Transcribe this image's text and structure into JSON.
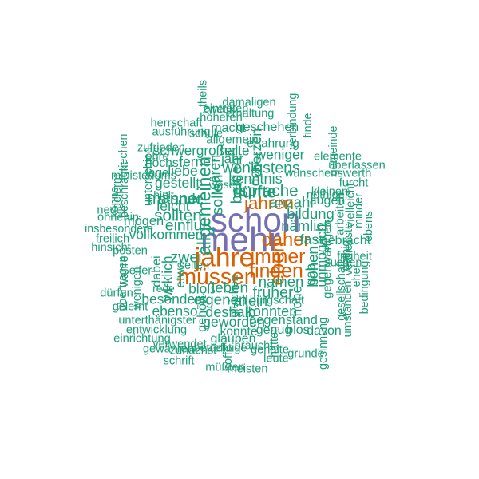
{
  "cloud": {
    "colors": {
      "top": "#7570b3",
      "high": "#d95f02",
      "mid": "#1b9e77"
    },
    "words": [
      {
        "text": "mehr",
        "weight": 1,
        "vertical": false,
        "tier": "top"
      },
      {
        "text": "schon",
        "weight": 0.95,
        "vertical": false,
        "tier": "top"
      },
      {
        "text": "jahre",
        "weight": 0.7,
        "vertical": false,
        "tier": "high"
      },
      {
        "text": "müssen",
        "weight": 0.55,
        "vertical": false,
        "tier": "high"
      },
      {
        "text": "eben",
        "weight": 0.45,
        "vertical": true,
        "tier": "high"
      },
      {
        "text": "immer",
        "weight": 0.45,
        "vertical": false,
        "tier": "high"
      },
      {
        "text": "finden",
        "weight": 0.45,
        "vertical": false,
        "tier": "high"
      },
      {
        "text": "daher",
        "weight": 0.42,
        "vertical": false,
        "tier": "high"
      },
      {
        "text": "jahren",
        "weight": 0.38,
        "vertical": false,
        "tier": "high"
      },
      {
        "text": "allgemeinen",
        "weight": 0.4,
        "vertical": true,
        "tier": "mid"
      },
      {
        "text": "dürfte",
        "weight": 0.35,
        "vertical": false,
        "tier": "mid"
      },
      {
        "text": "sprache",
        "weight": 0.33,
        "vertical": false,
        "tier": "mid"
      },
      {
        "text": "sollten",
        "weight": 0.33,
        "vertical": false,
        "tier": "mid"
      },
      {
        "text": "männer",
        "weight": 0.32,
        "vertical": false,
        "tier": "mid"
      },
      {
        "text": "einfluß",
        "weight": 0.3,
        "vertical": false,
        "tier": "mid"
      },
      {
        "text": "sollen",
        "weight": 0.3,
        "vertical": true,
        "tier": "mid"
      },
      {
        "text": "beiden",
        "weight": 0.3,
        "vertical": true,
        "tier": "mid"
      },
      {
        "text": "wenigstens",
        "weight": 0.3,
        "vertical": false,
        "tier": "mid"
      },
      {
        "text": "zwei",
        "weight": 0.3,
        "vertical": false,
        "tier": "mid"
      },
      {
        "text": "früher",
        "weight": 0.3,
        "vertical": false,
        "tier": "mid"
      },
      {
        "text": "anzahl",
        "weight": 0.28,
        "vertical": false,
        "tier": "mid"
      },
      {
        "text": "leben",
        "weight": 0.28,
        "vertical": false,
        "tier": "mid"
      },
      {
        "text": "eigenen",
        "weight": 0.28,
        "vertical": false,
        "tier": "mid"
      },
      {
        "text": "stande",
        "weight": 0.28,
        "vertical": false,
        "tier": "mid"
      },
      {
        "text": "bildung",
        "weight": 0.27,
        "vertical": false,
        "tier": "mid"
      },
      {
        "text": "namen",
        "weight": 0.27,
        "vertical": false,
        "tier": "mid"
      },
      {
        "text": "hohen",
        "weight": 0.27,
        "vertical": true,
        "tier": "mid"
      },
      {
        "text": "nämlich",
        "weight": 0.27,
        "vertical": false,
        "tier": "mid"
      },
      {
        "text": "kenntnis",
        "weight": 0.26,
        "vertical": false,
        "tier": "mid"
      },
      {
        "text": "allein",
        "weight": 0.26,
        "vertical": false,
        "tier": "mid"
      },
      {
        "text": "könnten",
        "weight": 0.26,
        "vertical": false,
        "tier": "mid"
      },
      {
        "text": "deshalb",
        "weight": 0.26,
        "vertical": false,
        "tier": "mid"
      },
      {
        "text": "gestellt",
        "weight": 0.25,
        "vertical": false,
        "tier": "mid"
      },
      {
        "text": "leicht",
        "weight": 0.25,
        "vertical": false,
        "tier": "mid"
      },
      {
        "text": "fast",
        "weight": 0.25,
        "vertical": false,
        "tier": "mid"
      },
      {
        "text": "wären",
        "weight": 0.25,
        "vertical": true,
        "tier": "mid"
      },
      {
        "text": "darf",
        "weight": 0.25,
        "vertical": true,
        "tier": "mid"
      },
      {
        "text": "herzen",
        "weight": 0.25,
        "vertical": true,
        "tier": "mid"
      },
      {
        "text": "liebe",
        "weight": 0.25,
        "vertical": false,
        "tier": "mid"
      },
      {
        "text": "geworden",
        "weight": 0.25,
        "vertical": false,
        "tier": "mid"
      },
      {
        "text": "ferner",
        "weight": 0.24,
        "vertical": false,
        "tier": "mid"
      },
      {
        "text": "weniger",
        "weight": 0.24,
        "vertical": false,
        "tier": "mid"
      },
      {
        "text": "vollkommen",
        "weight": 0.24,
        "vertical": false,
        "tier": "mid"
      },
      {
        "text": "besonders",
        "weight": 0.24,
        "vertical": false,
        "tier": "mid"
      },
      {
        "text": "ebenso",
        "weight": 0.24,
        "vertical": false,
        "tier": "mid"
      },
      {
        "text": "wirklich",
        "weight": 0.24,
        "vertical": true,
        "tier": "mid"
      },
      {
        "text": "bloß",
        "weight": 0.24,
        "vertical": false,
        "tier": "mid"
      },
      {
        "text": "unmöglich",
        "weight": 0.24,
        "vertical": true,
        "tier": "mid"
      },
      {
        "text": "hohe",
        "weight": 0.24,
        "vertical": true,
        "tier": "mid"
      },
      {
        "text": "schwergroßer",
        "weight": 0.23,
        "vertical": false,
        "tier": "mid"
      },
      {
        "text": "halte",
        "weight": 0.23,
        "vertical": false,
        "tier": "mid"
      },
      {
        "text": "jahr",
        "weight": 0.22,
        "vertical": false,
        "tier": "mid"
      },
      {
        "text": "gab",
        "weight": 0.22,
        "vertical": true,
        "tier": "mid"
      },
      {
        "text": "mögen",
        "weight": 0.21,
        "vertical": false,
        "tier": "mid"
      },
      {
        "text": "gegenstand",
        "weight": 0.21,
        "vertical": false,
        "tier": "mid"
      },
      {
        "text": "gebracht",
        "weight": 0.2,
        "vertical": false,
        "tier": "mid"
      },
      {
        "text": "dabei",
        "weight": 0.2,
        "vertical": true,
        "tier": "mid"
      },
      {
        "text": "genug",
        "weight": 0.2,
        "vertical": false,
        "tier": "mid"
      },
      {
        "text": "gehört",
        "weight": 0.2,
        "vertical": true,
        "tier": "mid"
      },
      {
        "text": "glauben",
        "weight": 0.2,
        "vertical": false,
        "tier": "mid"
      },
      {
        "text": "geschehen",
        "weight": 0.2,
        "vertical": false,
        "tier": "mid"
      },
      {
        "text": "macht",
        "weight": 0.2,
        "vertical": false,
        "tier": "mid"
      },
      {
        "text": "allgemein",
        "weight": 0.18,
        "vertical": false,
        "tier": "mid"
      },
      {
        "text": "erfahrung",
        "weight": 0.18,
        "vertical": false,
        "tier": "mid"
      },
      {
        "text": "augen",
        "weight": 0.2,
        "vertical": false,
        "tier": "mid"
      },
      {
        "text": "blos",
        "weight": 0.2,
        "vertical": false,
        "tier": "mid"
      },
      {
        "text": "davon",
        "weight": 0.2,
        "vertical": false,
        "tier": "mid"
      },
      {
        "text": "konnte",
        "weight": 0.19,
        "vertical": false,
        "tier": "mid"
      },
      {
        "text": "etwa",
        "weight": 0.19,
        "vertical": true,
        "tier": "mid"
      },
      {
        "text": "höchst",
        "weight": 0.19,
        "vertical": false,
        "tier": "mid"
      },
      {
        "text": "lage",
        "weight": 0.18,
        "vertical": false,
        "tier": "mid"
      },
      {
        "text": "arbeiten",
        "weight": 0.17,
        "vertical": true,
        "tier": "mid"
      },
      {
        "text": "gegenwärtigen",
        "weight": 0.17,
        "vertical": true,
        "tier": "mid"
      },
      {
        "text": "erhaltung",
        "weight": 0.16,
        "vertical": false,
        "tier": "mid"
      },
      {
        "text": "damaligen",
        "weight": 0.16,
        "vertical": false,
        "tier": "mid"
      },
      {
        "text": "höheren",
        "weight": 0.16,
        "vertical": false,
        "tier": "mid"
      },
      {
        "text": "eintreten",
        "weight": 0.16,
        "vertical": false,
        "tier": "mid"
      },
      {
        "text": "zweck",
        "weight": 0.16,
        "vertical": false,
        "tier": "mid"
      },
      {
        "text": "herrschaft",
        "weight": 0.16,
        "vertical": false,
        "tier": "mid"
      },
      {
        "text": "ausführung",
        "weight": 0.16,
        "vertical": false,
        "tier": "mid"
      },
      {
        "text": "zufrieden",
        "weight": 0.16,
        "vertical": false,
        "tier": "mid"
      },
      {
        "text": "ehre",
        "weight": 0.16,
        "vertical": false,
        "tier": "mid"
      },
      {
        "text": "schule",
        "weight": 0.16,
        "vertical": false,
        "tier": "mid"
      },
      {
        "text": "theils",
        "weight": 0.16,
        "vertical": true,
        "tier": "mid"
      },
      {
        "text": "verbindung",
        "weight": 0.15,
        "vertical": true,
        "tier": "mid"
      },
      {
        "text": "finde",
        "weight": 0.15,
        "vertical": true,
        "tier": "mid"
      },
      {
        "text": "gemeinde",
        "weight": 0.15,
        "vertical": true,
        "tier": "mid"
      },
      {
        "text": "elemente",
        "weight": 0.16,
        "vertical": false,
        "tier": "mid"
      },
      {
        "text": "überlassen",
        "weight": 0.16,
        "vertical": false,
        "tier": "mid"
      },
      {
        "text": "wünschenswerth",
        "weight": 0.16,
        "vertical": false,
        "tier": "mid"
      },
      {
        "text": "furcht",
        "weight": 0.16,
        "vertical": false,
        "tier": "mid"
      },
      {
        "text": "kleinen",
        "weight": 0.16,
        "vertical": false,
        "tier": "mid"
      },
      {
        "text": "nöthigen",
        "weight": 0.16,
        "vertical": false,
        "tier": "mid"
      },
      {
        "text": "vielleicht",
        "weight": 0.16,
        "vertical": true,
        "tier": "mid"
      },
      {
        "text": "minder",
        "weight": 0.15,
        "vertical": true,
        "tier": "mid"
      },
      {
        "text": "lebens",
        "weight": 0.15,
        "vertical": true,
        "tier": "mid"
      },
      {
        "text": "verdienste",
        "weight": 0.15,
        "vertical": true,
        "tier": "mid"
      },
      {
        "text": "freiheit",
        "weight": 0.16,
        "vertical": false,
        "tier": "mid"
      },
      {
        "text": "suchen",
        "weight": 0.16,
        "vertical": false,
        "tier": "mid"
      },
      {
        "text": "nothig",
        "weight": 0.15,
        "vertical": true,
        "tier": "mid"
      },
      {
        "text": "eher",
        "weight": 0.15,
        "vertical": true,
        "tier": "mid"
      },
      {
        "text": "bedingung",
        "weight": 0.15,
        "vertical": true,
        "tier": "mid"
      },
      {
        "text": "gesellschaft",
        "weight": 0.15,
        "vertical": true,
        "tier": "mid"
      },
      {
        "text": "umständen",
        "weight": 0.15,
        "vertical": true,
        "tier": "mid"
      },
      {
        "text": "gesinnung",
        "weight": 0.15,
        "vertical": true,
        "tier": "mid"
      },
      {
        "text": "griechen",
        "weight": 0.15,
        "vertical": true,
        "tier": "mid"
      },
      {
        "text": "ministeriums",
        "weight": 0.16,
        "vertical": false,
        "tier": "mid"
      },
      {
        "text": "beschränkt",
        "weight": 0.15,
        "vertical": true,
        "tier": "mid"
      },
      {
        "text": "unterschied",
        "weight": 0.15,
        "vertical": true,
        "tier": "mid"
      },
      {
        "text": "gelernt",
        "weight": 0.15,
        "vertical": true,
        "tier": "mid"
      },
      {
        "text": "könne",
        "weight": 0.15,
        "vertical": true,
        "tier": "mid"
      },
      {
        "text": "neuer",
        "weight": 0.16,
        "vertical": false,
        "tier": "mid"
      },
      {
        "text": "ohnehin",
        "weight": 0.16,
        "vertical": false,
        "tier": "mid"
      },
      {
        "text": "insbesondere",
        "weight": 0.15,
        "vertical": false,
        "tier": "mid"
      },
      {
        "text": "freilich",
        "weight": 0.16,
        "vertical": false,
        "tier": "mid"
      },
      {
        "text": "hinsicht",
        "weight": 0.16,
        "vertical": false,
        "tier": "mid"
      },
      {
        "text": "posten",
        "weight": 0.16,
        "vertical": false,
        "tier": "mid"
      },
      {
        "text": "eifer",
        "weight": 0.16,
        "vertical": false,
        "tier": "mid"
      },
      {
        "text": "wenigen",
        "weight": 0.15,
        "vertical": true,
        "tier": "mid"
      },
      {
        "text": "wahre",
        "weight": 0.15,
        "vertical": true,
        "tier": "mid"
      },
      {
        "text": "übertragen",
        "weight": 0.15,
        "vertical": true,
        "tier": "mid"
      },
      {
        "text": "dürfen",
        "weight": 0.16,
        "vertical": false,
        "tier": "mid"
      },
      {
        "text": "gelernt",
        "weight": 0.16,
        "vertical": false,
        "tier": "mid"
      },
      {
        "text": "unterthänigster",
        "weight": 0.16,
        "vertical": false,
        "tier": "mid"
      },
      {
        "text": "entwicklung",
        "weight": 0.16,
        "vertical": false,
        "tier": "mid"
      },
      {
        "text": "einrichtung",
        "weight": 0.16,
        "vertical": false,
        "tier": "mid"
      },
      {
        "text": "verwendet",
        "weight": 0.16,
        "vertical": false,
        "tier": "mid"
      },
      {
        "text": "gewähren",
        "weight": 0.16,
        "vertical": false,
        "tier": "mid"
      },
      {
        "text": "zunächst",
        "weight": 0.16,
        "vertical": false,
        "tier": "mid"
      },
      {
        "text": "schrift",
        "weight": 0.16,
        "vertical": false,
        "tier": "mid"
      },
      {
        "text": "betreff",
        "weight": 0.16,
        "vertical": false,
        "tier": "mid"
      },
      {
        "text": "tüchtige",
        "weight": 0.16,
        "vertical": false,
        "tier": "mid"
      },
      {
        "text": "hoffe",
        "weight": 0.15,
        "vertical": true,
        "tier": "mid"
      },
      {
        "text": "müßten",
        "weight": 0.16,
        "vertical": false,
        "tier": "mid"
      },
      {
        "text": "meisten",
        "weight": 0.16,
        "vertical": false,
        "tier": "mid"
      },
      {
        "text": "braucht",
        "weight": 0.16,
        "vertical": false,
        "tier": "mid"
      },
      {
        "text": "gehalte",
        "weight": 0.16,
        "vertical": false,
        "tier": "mid"
      },
      {
        "text": "hätten",
        "weight": 0.15,
        "vertical": true,
        "tier": "mid"
      },
      {
        "text": "leute",
        "weight": 0.16,
        "vertical": false,
        "tier": "mid"
      },
      {
        "text": "grunde",
        "weight": 0.16,
        "vertical": false,
        "tier": "mid"
      },
      {
        "text": "bürgschaft",
        "weight": 0.16,
        "vertical": false,
        "tier": "mid"
      },
      {
        "text": "gleichen",
        "weight": 0.15,
        "vertical": true,
        "tier": "mid"
      },
      {
        "text": "seiten",
        "weight": 0.15,
        "vertical": false,
        "tier": "mid"
      },
      {
        "text": "rede",
        "weight": 0.14,
        "vertical": false,
        "tier": "mid"
      },
      {
        "text": "hielt",
        "weight": 0.14,
        "vertical": false,
        "tier": "mid"
      },
      {
        "text": "wesen",
        "weight": 0.14,
        "vertical": false,
        "tier": "mid"
      },
      {
        "text": "gestellt",
        "weight": 0.15,
        "vertical": true,
        "tier": "mid"
      },
      {
        "text": "thät",
        "weight": 0.15,
        "vertical": true,
        "tier": "mid"
      }
    ]
  }
}
